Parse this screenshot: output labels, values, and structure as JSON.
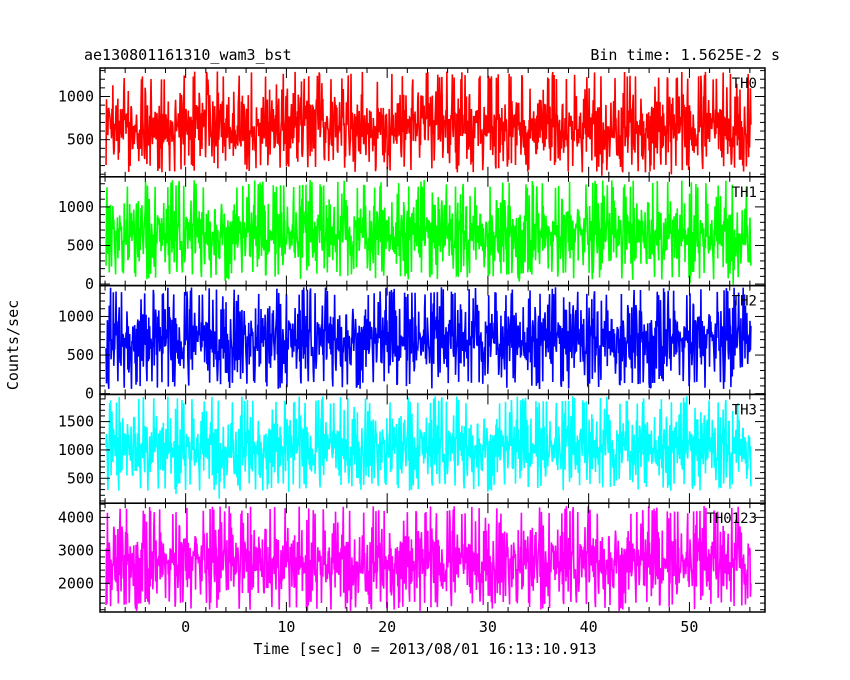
{
  "chart_data": {
    "type": "line",
    "title": "ae130801161310_wam3_bst",
    "subtitle": "Bin time: 1.5625E-2 s",
    "xlabel": "Time [sec] 0 = 2013/08/01 16:13:10.913",
    "ylabel": "Counts/sec",
    "xlim": [
      -8.5,
      57.5
    ],
    "x_ticks": [
      0,
      10,
      20,
      30,
      40,
      50
    ],
    "x_tick_labels": [
      "0",
      "10",
      "20",
      "30",
      "40",
      "50"
    ],
    "data_x_range": [
      -7.9,
      56.1
    ],
    "bin_time_s": 0.015625,
    "grid": false,
    "panels": [
      {
        "name": "TH0",
        "color": "#ff0000",
        "ylim": [
          70,
          1330
        ],
        "y_ticks": [
          500,
          1000
        ],
        "y_tick_labels": [
          "500",
          "1000"
        ],
        "mean": 650,
        "low": 120,
        "high": 1290
      },
      {
        "name": "TH1",
        "color": "#00ff00",
        "ylim": [
          -20,
          1390
        ],
        "y_ticks": [
          0,
          500,
          1000
        ],
        "y_tick_labels": [
          "0",
          "500",
          "1000"
        ],
        "mean": 650,
        "low": 60,
        "high": 1350
      },
      {
        "name": "TH2",
        "color": "#0000ff",
        "ylim": [
          -10,
          1400
        ],
        "y_ticks": [
          0,
          500,
          1000
        ],
        "y_tick_labels": [
          "0",
          "500",
          "1000"
        ],
        "mean": 700,
        "low": 60,
        "high": 1380
      },
      {
        "name": "TH3",
        "color": "#00ffff",
        "ylim": [
          60,
          1980
        ],
        "y_ticks": [
          500,
          1000,
          1500
        ],
        "y_tick_labels": [
          "500",
          "1000",
          "1500"
        ],
        "mean": 1050,
        "low": 280,
        "high": 1950
      },
      {
        "name": "TH0123",
        "color": "#ff00ff",
        "ylim": [
          1130,
          4430
        ],
        "y_ticks": [
          2000,
          3000,
          4000
        ],
        "y_tick_labels": [
          "2000",
          "3000",
          "4000"
        ],
        "mean": 2650,
        "low": 1200,
        "high": 4350
      }
    ]
  }
}
